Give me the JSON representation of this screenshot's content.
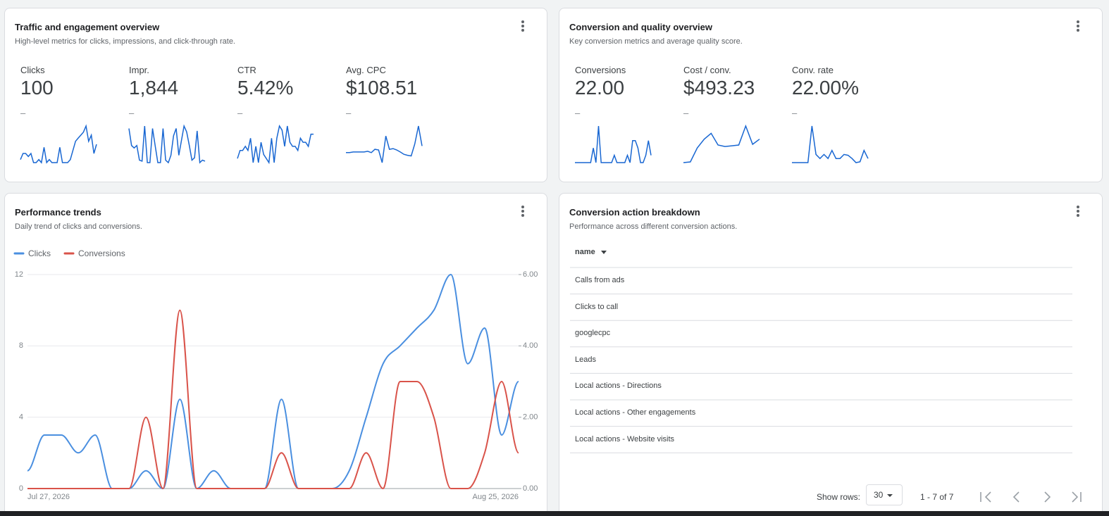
{
  "spark_color": "#1967d2",
  "cards": [
    {
      "title": "Traffic and engagement overview",
      "subtitle": "High-level metrics for clicks, impressions, and click-through rate.",
      "metrics": [
        {
          "label": "Clicks",
          "value": "100",
          "delta": "–",
          "spark": [
            1,
            3,
            3,
            2,
            3,
            0,
            0,
            1,
            0,
            5,
            0,
            1,
            0,
            0,
            0,
            5,
            0,
            0,
            0,
            1,
            4,
            7,
            8,
            9,
            10,
            12,
            7,
            9,
            3,
            6
          ]
        },
        {
          "label": "Impr.",
          "value": "1,844",
          "delta": "–",
          "spark": [
            95,
            60,
            55,
            60,
            30,
            28,
            100,
            25,
            25,
            95,
            60,
            25,
            25,
            95,
            30,
            25,
            40,
            80,
            95,
            40,
            70,
            100,
            88,
            60,
            30,
            35,
            90,
            25,
            30,
            28
          ]
        },
        {
          "label": "CTR",
          "value": "5.42%",
          "delta": "–",
          "spark": [
            1,
            3,
            3,
            4,
            3,
            6,
            0,
            4,
            0,
            5,
            2,
            1,
            0,
            6,
            0,
            6,
            9,
            8,
            4,
            9,
            5,
            4,
            4,
            3,
            6,
            5,
            5,
            4,
            7,
            7
          ]
        },
        {
          "label": "Avg. CPC",
          "value": "$108.51",
          "delta": "–",
          "spark": [
            70,
            70,
            72,
            72,
            72,
            72,
            74,
            70,
            80,
            78,
            40,
            120,
            80,
            82,
            78,
            72,
            65,
            62,
            60,
            96,
            150,
            90
          ]
        }
      ]
    },
    {
      "title": "Conversion and quality overview",
      "subtitle": "Key conversion metrics and average quality score.",
      "metrics": [
        {
          "label": "Conversions",
          "value": "22.00",
          "delta": "–",
          "spark": [
            0,
            0,
            0,
            0,
            0,
            0,
            0,
            2,
            0,
            5,
            0,
            0,
            0,
            0,
            0,
            1,
            0,
            0,
            0,
            0,
            1,
            0,
            3,
            3,
            2,
            0,
            0,
            1,
            3,
            1
          ]
        },
        {
          "label": "Cost / conv.",
          "value": "$493.23",
          "delta": "–",
          "spark": [
            200,
            210,
            400,
            520,
            600,
            440,
            420,
            430,
            440,
            700,
            450,
            520
          ]
        },
        {
          "label": "Conv. rate",
          "value": "22.00%",
          "delta": "–",
          "spark": [
            10,
            10,
            10,
            10,
            10,
            100,
            30,
            20,
            30,
            20,
            40,
            20,
            20,
            30,
            28,
            20,
            10,
            12,
            40,
            20
          ]
        }
      ]
    },
    {
      "title": "Performance trends",
      "subtitle": "Daily trend of clicks and conversions.",
      "chart_data": {
        "type": "line",
        "categories": [
          "Jul 27, 2026",
          null,
          null,
          null,
          null,
          null,
          null,
          null,
          null,
          null,
          null,
          null,
          null,
          null,
          null,
          null,
          null,
          null,
          null,
          null,
          null,
          null,
          null,
          null,
          null,
          null,
          null,
          null,
          null,
          "Aug 25, 2026"
        ],
        "series": [
          {
            "name": "Clicks",
            "color": "#4a8fe0",
            "values": [
              1,
              3,
              3,
              2,
              3,
              0,
              0,
              1,
              0,
              5,
              0,
              1,
              0,
              0,
              0,
              5,
              0,
              0,
              0,
              1,
              4,
              7,
              8,
              9,
              10,
              12,
              7,
              9,
              3,
              6
            ]
          },
          {
            "name": "Conversions",
            "color": "#d9534a",
            "axis": "y2",
            "values": [
              0,
              0,
              0,
              0,
              0,
              0,
              0,
              2,
              0,
              5,
              0,
              0,
              0,
              0,
              0,
              1,
              0,
              0,
              0,
              0,
              1,
              0,
              3,
              3,
              2,
              0,
              0,
              1,
              3,
              1
            ]
          }
        ],
        "ylim": [
          0,
          12
        ],
        "yticks": [
          0,
          4,
          8,
          12
        ],
        "y2lim": [
          0,
          6
        ],
        "y2ticks": [
          {
            "value": 0,
            "label": "0.00"
          },
          {
            "value": 2,
            "label": "2.00"
          },
          {
            "value": 4,
            "label": "4.00"
          },
          {
            "value": 6,
            "label": "6.00"
          }
        ],
        "grid": true,
        "legend": "top-left"
      }
    },
    {
      "title": "Conversion action breakdown",
      "subtitle": "Performance across different conversion actions.",
      "table": {
        "header": [
          "name"
        ],
        "rows": [
          [
            "Calls from ads"
          ],
          [
            "Clicks to call"
          ],
          [
            "googlecpc"
          ],
          [
            "Leads"
          ],
          [
            "Local actions - Directions"
          ],
          [
            "Local actions - Other engagements"
          ],
          [
            "Local actions - Website visits"
          ]
        ]
      },
      "footer": {
        "show_rows_label": "Show rows:",
        "rows_per_page": 30,
        "range": "1 - 7 of 7"
      }
    }
  ]
}
